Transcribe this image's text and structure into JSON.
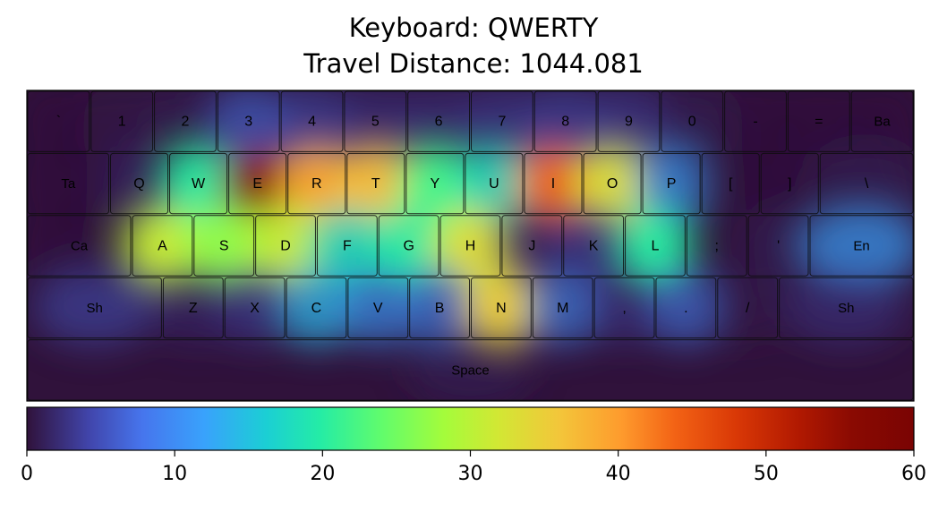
{
  "chart_data": {
    "type": "heatmap",
    "title": "Keyboard: QWERTY",
    "subtitle": "Travel Distance: 1044.081",
    "colormap": "turbo",
    "colorbar": {
      "min": 0,
      "max": 60,
      "ticks": [
        0,
        10,
        20,
        30,
        40,
        50,
        60
      ]
    },
    "rows": [
      [
        {
          "label": "`",
          "value": 0
        },
        {
          "label": "1",
          "value": 1
        },
        {
          "label": "2",
          "value": 2
        },
        {
          "label": "3",
          "value": 8
        },
        {
          "label": "4",
          "value": 6
        },
        {
          "label": "5",
          "value": 4
        },
        {
          "label": "6",
          "value": 4
        },
        {
          "label": "7",
          "value": 5
        },
        {
          "label": "8",
          "value": 6
        },
        {
          "label": "9",
          "value": 5
        },
        {
          "label": "0",
          "value": 2
        },
        {
          "label": "-",
          "value": 0
        },
        {
          "label": "=",
          "value": 0
        },
        {
          "label": "Ba",
          "value": 0
        }
      ],
      [
        {
          "label": "Ta",
          "value": 0
        },
        {
          "label": "Q",
          "value": 3
        },
        {
          "label": "W",
          "value": 20
        },
        {
          "label": "E",
          "value": 56
        },
        {
          "label": "R",
          "value": 38
        },
        {
          "label": "T",
          "value": 36
        },
        {
          "label": "Y",
          "value": 22
        },
        {
          "label": "U",
          "value": 18
        },
        {
          "label": "I",
          "value": 43
        },
        {
          "label": "O",
          "value": 32
        },
        {
          "label": "P",
          "value": 12
        },
        {
          "label": "[",
          "value": 0
        },
        {
          "label": "]",
          "value": 0
        },
        {
          "label": "\\",
          "value": 2
        }
      ],
      [
        {
          "label": "Ca",
          "value": 0
        },
        {
          "label": "A",
          "value": 30
        },
        {
          "label": "S",
          "value": 27
        },
        {
          "label": "D",
          "value": 30
        },
        {
          "label": "F",
          "value": 18
        },
        {
          "label": "G",
          "value": 20
        },
        {
          "label": "H",
          "value": 32
        },
        {
          "label": "J",
          "value": 3
        },
        {
          "label": "K",
          "value": 5
        },
        {
          "label": "L",
          "value": 20
        },
        {
          "label": ";",
          "value": 0
        },
        {
          "label": "'",
          "value": 2
        },
        {
          "label": "En",
          "value": 12
        }
      ],
      [
        {
          "label": "Sh",
          "value": 6
        },
        {
          "label": "Z",
          "value": 3
        },
        {
          "label": "X",
          "value": 5
        },
        {
          "label": "C",
          "value": 14
        },
        {
          "label": "V",
          "value": 11
        },
        {
          "label": "B",
          "value": 10
        },
        {
          "label": "N",
          "value": 34
        },
        {
          "label": "M",
          "value": 10
        },
        {
          "label": ",",
          "value": 4
        },
        {
          "label": ".",
          "value": 9
        },
        {
          "label": "/",
          "value": 1
        },
        {
          "label": "Sh",
          "value": 4
        }
      ],
      [
        {
          "label": "Space",
          "value": 2
        }
      ]
    ]
  }
}
